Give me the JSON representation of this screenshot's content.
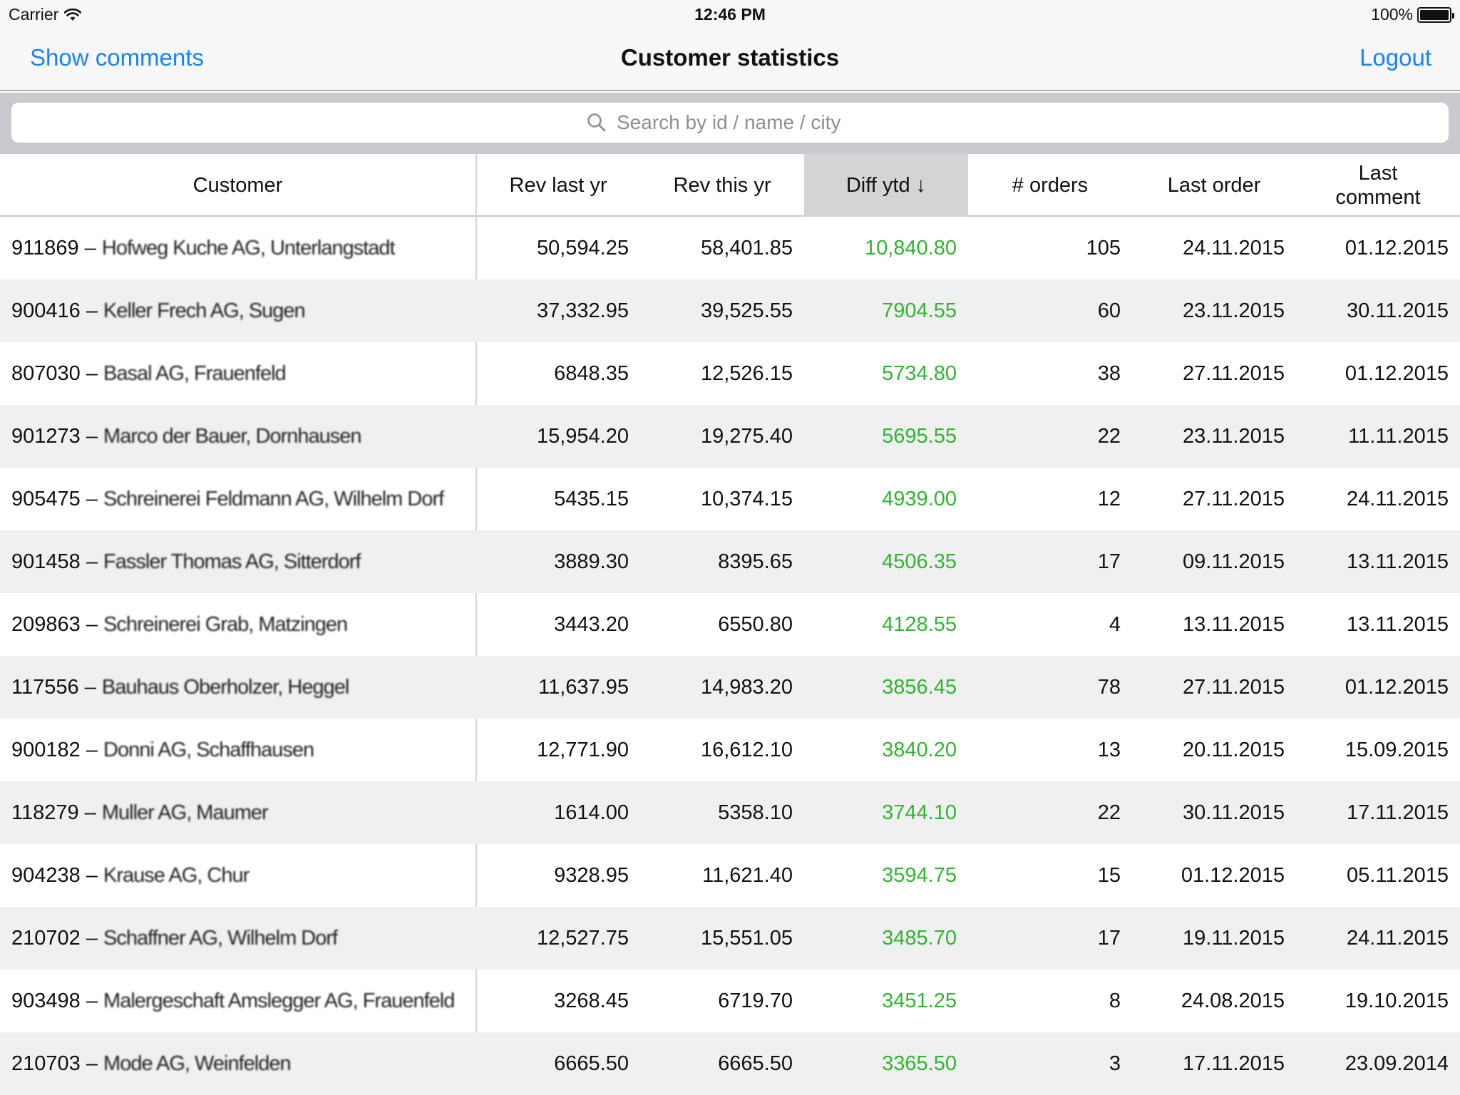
{
  "status": {
    "carrier": "Carrier",
    "time": "12:46 PM",
    "battery": "100%"
  },
  "nav": {
    "left_label": "Show comments",
    "title": "Customer statistics",
    "right_label": "Logout"
  },
  "search": {
    "placeholder": "Search by id / name / city",
    "value": ""
  },
  "columns": {
    "customer": "Customer",
    "rev_last": "Rev last yr",
    "rev_this": "Rev this yr",
    "diff": "Diff ytd ↓",
    "orders": "# orders",
    "last_order": "Last order",
    "last_comment_1": "Last",
    "last_comment_2": "comment"
  },
  "colors": {
    "accent": "#1a82fb",
    "positive": "#2fb52f",
    "active_header": "#d4d4d4",
    "stripe": "#f0f0f0"
  },
  "rows": [
    {
      "id": "911869",
      "name": "Hofweg Kuche AG, Unterlangstadt",
      "rev_last": "50,594.25",
      "rev_this": "58,401.85",
      "diff": "10,840.80",
      "orders": "105",
      "last_order": "24.11.2015",
      "last_comment": "01.12.2015"
    },
    {
      "id": "900416",
      "name": "Keller Frech AG, Sugen",
      "rev_last": "37,332.95",
      "rev_this": "39,525.55",
      "diff": "7904.55",
      "orders": "60",
      "last_order": "23.11.2015",
      "last_comment": "30.11.2015"
    },
    {
      "id": "807030",
      "name": "Basal AG, Frauenfeld",
      "rev_last": "6848.35",
      "rev_this": "12,526.15",
      "diff": "5734.80",
      "orders": "38",
      "last_order": "27.11.2015",
      "last_comment": "01.12.2015"
    },
    {
      "id": "901273",
      "name": "Marco der Bauer, Dornhausen",
      "rev_last": "15,954.20",
      "rev_this": "19,275.40",
      "diff": "5695.55",
      "orders": "22",
      "last_order": "23.11.2015",
      "last_comment": "11.11.2015"
    },
    {
      "id": "905475",
      "name": "Schreinerei Feldmann AG, Wilhelm Dorf",
      "rev_last": "5435.15",
      "rev_this": "10,374.15",
      "diff": "4939.00",
      "orders": "12",
      "last_order": "27.11.2015",
      "last_comment": "24.11.2015"
    },
    {
      "id": "901458",
      "name": "Fassler Thomas AG, Sitterdorf",
      "rev_last": "3889.30",
      "rev_this": "8395.65",
      "diff": "4506.35",
      "orders": "17",
      "last_order": "09.11.2015",
      "last_comment": "13.11.2015"
    },
    {
      "id": "209863",
      "name": "Schreinerei Grab, Matzingen",
      "rev_last": "3443.20",
      "rev_this": "6550.80",
      "diff": "4128.55",
      "orders": "4",
      "last_order": "13.11.2015",
      "last_comment": "13.11.2015"
    },
    {
      "id": "117556",
      "name": "Bauhaus Oberholzer, Heggel",
      "rev_last": "11,637.95",
      "rev_this": "14,983.20",
      "diff": "3856.45",
      "orders": "78",
      "last_order": "27.11.2015",
      "last_comment": "01.12.2015"
    },
    {
      "id": "900182",
      "name": "Donni AG, Schaffhausen",
      "rev_last": "12,771.90",
      "rev_this": "16,612.10",
      "diff": "3840.20",
      "orders": "13",
      "last_order": "20.11.2015",
      "last_comment": "15.09.2015"
    },
    {
      "id": "118279",
      "name": "Muller AG, Maumer",
      "rev_last": "1614.00",
      "rev_this": "5358.10",
      "diff": "3744.10",
      "orders": "22",
      "last_order": "30.11.2015",
      "last_comment": "17.11.2015"
    },
    {
      "id": "904238",
      "name": "Krause AG, Chur",
      "rev_last": "9328.95",
      "rev_this": "11,621.40",
      "diff": "3594.75",
      "orders": "15",
      "last_order": "01.12.2015",
      "last_comment": "05.11.2015"
    },
    {
      "id": "210702",
      "name": "Schaffner AG, Wilhelm Dorf",
      "rev_last": "12,527.75",
      "rev_this": "15,551.05",
      "diff": "3485.70",
      "orders": "17",
      "last_order": "19.11.2015",
      "last_comment": "24.11.2015"
    },
    {
      "id": "903498",
      "name": "Malergeschaft Amslegger AG, Frauenfeld",
      "rev_last": "3268.45",
      "rev_this": "6719.70",
      "diff": "3451.25",
      "orders": "8",
      "last_order": "24.08.2015",
      "last_comment": "19.10.2015"
    },
    {
      "id": "210703",
      "name": "Mode AG, Weinfelden",
      "rev_last": "6665.50",
      "rev_this": "6665.50",
      "diff": "3365.50",
      "orders": "3",
      "last_order": "17.11.2015",
      "last_comment": "23.09.2014"
    }
  ]
}
